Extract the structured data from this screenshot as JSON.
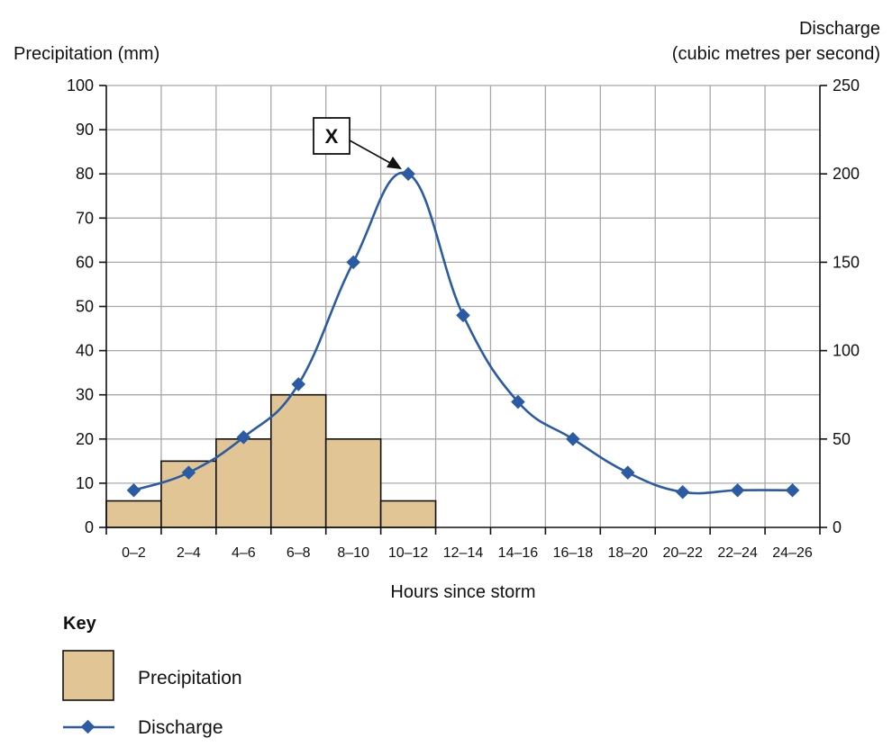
{
  "chart_data": {
    "type": "bar+line",
    "xlabel": "Hours since storm",
    "categories": [
      "0–2",
      "2–4",
      "4–6",
      "6–8",
      "8–10",
      "10–12",
      "12–14",
      "14–16",
      "16–18",
      "18–20",
      "20–22",
      "22–24",
      "24–26"
    ],
    "left_axis": {
      "title": "Precipitation (mm)",
      "ylim": [
        0,
        100
      ],
      "ticks": [
        0,
        10,
        20,
        30,
        40,
        50,
        60,
        70,
        80,
        90,
        100
      ]
    },
    "right_axis": {
      "title_line1": "Discharge",
      "title_line2": "(cubic metres per second)",
      "ylim": [
        0,
        250
      ],
      "ticks": [
        0,
        50,
        100,
        150,
        200,
        250
      ]
    },
    "series": [
      {
        "name": "Precipitation",
        "type": "bar",
        "axis": "left",
        "values": [
          6,
          15,
          20,
          30,
          20,
          6,
          0,
          0,
          0,
          0,
          0,
          0,
          0
        ]
      },
      {
        "name": "Discharge",
        "type": "line",
        "axis": "right",
        "values": [
          21,
          31,
          51,
          81,
          150,
          200,
          120,
          71,
          50,
          31,
          20,
          21,
          21
        ]
      }
    ],
    "annotation": {
      "label": "X",
      "category": "10–12"
    },
    "grid": true,
    "colors": {
      "bar_fill": "#e2c594",
      "line": "#2a5ba3",
      "marker": "#2a5ba3"
    }
  },
  "key": {
    "title": "Key",
    "items": [
      {
        "label": "Precipitation",
        "kind": "bar"
      },
      {
        "label": "Discharge",
        "kind": "line"
      }
    ]
  }
}
